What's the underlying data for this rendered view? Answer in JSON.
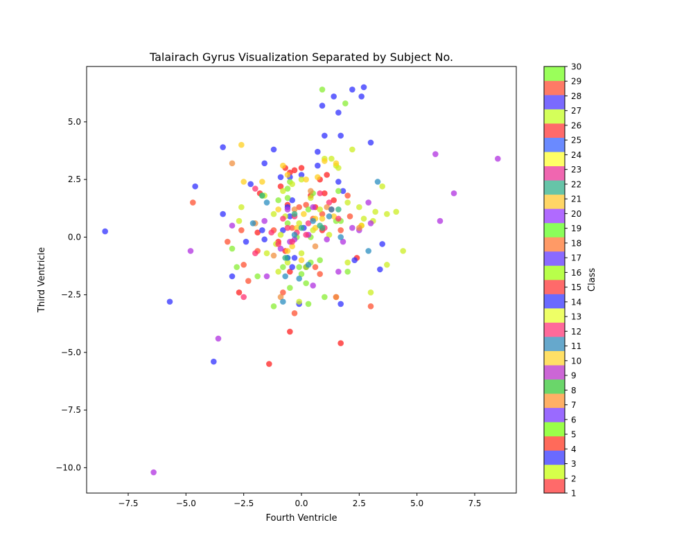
{
  "chart_data": {
    "type": "scatter",
    "title": "Talairach Gyrus Visualization Separated by Subject No.",
    "xlabel": "Fourth Ventricle",
    "ylabel": "Third Ventricle",
    "xlim": [
      -9.3,
      9.3
    ],
    "ylim": [
      -11.1,
      7.4
    ],
    "xticks": [
      -7.5,
      -5.0,
      -2.5,
      0.0,
      2.5,
      5.0,
      7.5
    ],
    "yticks": [
      -10.0,
      -7.5,
      -5.0,
      -2.5,
      0.0,
      2.5,
      5.0
    ],
    "grid": false,
    "colorbar": {
      "label": "Class",
      "ticks": [
        1,
        2,
        3,
        4,
        5,
        6,
        7,
        8,
        9,
        10,
        11,
        12,
        13,
        14,
        15,
        16,
        17,
        18,
        19,
        20,
        21,
        22,
        23,
        24,
        25,
        26,
        27,
        28,
        29,
        30
      ],
      "colors": [
        "#ff6a6a",
        "#d6ff4a",
        "#6a6aff",
        "#ff6a5a",
        "#9aff4a",
        "#9a6aff",
        "#ffb066",
        "#6ad66a",
        "#cc66d6",
        "#ffe066",
        "#66a8cc",
        "#ff6a9a",
        "#eeff66",
        "#6a6aff",
        "#ff6a6a",
        "#b8ff4a",
        "#8a6aff",
        "#ff9a66",
        "#8aff5a",
        "#b06aff",
        "#ffd666",
        "#66c4a8",
        "#f066b0",
        "#ffff66",
        "#6a8aff",
        "#ff6a6a",
        "#d4ff5a",
        "#7a6aff",
        "#ff7a66",
        "#9aff5a"
      ]
    },
    "series": [
      {
        "color": "#ff2020",
        "points": [
          [
            -0.7,
            3.0
          ],
          [
            -0.3,
            2.9
          ],
          [
            0.0,
            3.0
          ],
          [
            0.8,
            2.5
          ],
          [
            1.1,
            2.7
          ],
          [
            -0.5,
            2.8
          ],
          [
            -0.9,
            2.2
          ],
          [
            -1.8,
            1.9
          ],
          [
            0.4,
            1.8
          ],
          [
            1.0,
            1.9
          ],
          [
            1.4,
            1.6
          ],
          [
            -0.6,
            1.4
          ],
          [
            0.6,
            1.3
          ],
          [
            1.3,
            1.2
          ],
          [
            -1.9,
            0.2
          ],
          [
            -1.0,
            -0.2
          ],
          [
            -0.7,
            -0.6
          ],
          [
            -0.5,
            -1.5
          ],
          [
            -2.7,
            -2.4
          ],
          [
            -1.4,
            -5.5
          ],
          [
            -0.5,
            -4.1
          ],
          [
            1.7,
            -4.6
          ],
          [
            2.4,
            -0.9
          ],
          [
            0.9,
            0.3
          ]
        ]
      },
      {
        "color": "#ff5030",
        "points": [
          [
            -4.7,
            1.5
          ],
          [
            -2.5,
            -1.2
          ],
          [
            -2.3,
            -1.9
          ],
          [
            -1.2,
            0.3
          ],
          [
            -0.8,
            -2.4
          ],
          [
            -0.3,
            -3.3
          ],
          [
            0.2,
            -1.3
          ],
          [
            0.6,
            -1.3
          ],
          [
            0.8,
            -1.6
          ],
          [
            1.5,
            -2.6
          ],
          [
            3.0,
            -3.0
          ],
          [
            -3.2,
            -0.2
          ],
          [
            -2.6,
            0.3
          ],
          [
            2.1,
            0.9
          ],
          [
            1.7,
            0.3
          ],
          [
            0.5,
            0.8
          ],
          [
            -0.1,
            1.3
          ],
          [
            0.2,
            1.4
          ],
          [
            0.9,
            1.0
          ],
          [
            2.0,
            1.8
          ],
          [
            -0.4,
            0.4
          ],
          [
            -1.9,
            -0.6
          ]
        ]
      },
      {
        "color": "#3030ff",
        "points": [
          [
            -8.5,
            0.25
          ],
          [
            -5.7,
            -2.8
          ],
          [
            -4.6,
            2.2
          ],
          [
            -3.4,
            3.9
          ],
          [
            -3.4,
            1.0
          ],
          [
            -3.0,
            -1.7
          ],
          [
            -3.8,
            -5.4
          ],
          [
            -1.2,
            3.8
          ],
          [
            -1.6,
            3.2
          ],
          [
            -2.2,
            2.3
          ],
          [
            -1.7,
            0.3
          ],
          [
            -1.6,
            -0.1
          ],
          [
            -0.9,
            2.6
          ],
          [
            -0.5,
            2.6
          ],
          [
            0.0,
            2.7
          ],
          [
            0.7,
            3.1
          ],
          [
            0.7,
            3.7
          ],
          [
            1.0,
            4.4
          ],
          [
            1.7,
            4.4
          ],
          [
            3.0,
            4.1
          ],
          [
            0.9,
            5.7
          ],
          [
            1.4,
            6.1
          ],
          [
            1.6,
            5.4
          ],
          [
            2.2,
            6.4
          ],
          [
            2.6,
            6.1
          ],
          [
            2.7,
            6.5
          ],
          [
            -0.6,
            1.3
          ],
          [
            -0.5,
            0.9
          ],
          [
            -0.8,
            0.3
          ],
          [
            0.1,
            0.4
          ],
          [
            -0.4,
            -1.3
          ],
          [
            -0.3,
            -0.9
          ],
          [
            -0.6,
            -0.9
          ],
          [
            1.7,
            -2.9
          ],
          [
            -0.1,
            -2.9
          ],
          [
            2.3,
            -1.0
          ],
          [
            3.4,
            -1.4
          ],
          [
            3.5,
            -0.3
          ],
          [
            1.8,
            2.0
          ],
          [
            1.6,
            2.4
          ],
          [
            -0.4,
            1.6
          ],
          [
            -2.4,
            -0.2
          ]
        ]
      },
      {
        "color": "#88ee33",
        "points": [
          [
            0.9,
            6.4
          ],
          [
            1.9,
            5.8
          ],
          [
            -1.7,
            1.8
          ],
          [
            -0.6,
            2.1
          ],
          [
            -0.5,
            2.4
          ],
          [
            0.5,
            1.9
          ],
          [
            0.3,
            1.2
          ],
          [
            1.6,
            2.0
          ],
          [
            -1.0,
            1.6
          ],
          [
            -0.6,
            1.7
          ],
          [
            -0.8,
            -1.3
          ],
          [
            -1.2,
            -3.0
          ],
          [
            0.2,
            -2.0
          ],
          [
            0.4,
            -1.1
          ],
          [
            0.2,
            -1.3
          ],
          [
            -0.1,
            -1.3
          ],
          [
            0.0,
            -1.6
          ],
          [
            1.0,
            -2.6
          ],
          [
            -0.5,
            -2.2
          ],
          [
            2.0,
            -1.5
          ],
          [
            -2.8,
            -1.3
          ],
          [
            -1.9,
            -1.7
          ],
          [
            -3.0,
            -0.5
          ],
          [
            0.3,
            -2.9
          ],
          [
            -0.6,
            0.6
          ],
          [
            -0.2,
            0.0
          ],
          [
            0.4,
            0.0
          ],
          [
            1.7,
            0.7
          ],
          [
            1.5,
            0.7
          ],
          [
            0.8,
            -1.0
          ]
        ]
      },
      {
        "color": "#ccee22",
        "points": [
          [
            -2.6,
            1.3
          ],
          [
            -1.6,
            1.8
          ],
          [
            -0.8,
            2.0
          ],
          [
            -0.4,
            2.3
          ],
          [
            0.0,
            2.5
          ],
          [
            0.4,
            1.7
          ],
          [
            0.8,
            1.2
          ],
          [
            2.0,
            1.5
          ],
          [
            2.5,
            1.3
          ],
          [
            3.2,
            1.1
          ],
          [
            3.7,
            1.0
          ],
          [
            4.1,
            1.1
          ],
          [
            3.5,
            2.2
          ],
          [
            2.2,
            3.8
          ],
          [
            1.5,
            3.1
          ],
          [
            1.6,
            3.0
          ],
          [
            -1.2,
            1.0
          ],
          [
            -0.7,
            0.9
          ],
          [
            -0.1,
            0.6
          ],
          [
            0.5,
            0.3
          ],
          [
            1.2,
            0.1
          ],
          [
            2.6,
            0.5
          ],
          [
            3.1,
            0.7
          ],
          [
            4.4,
            -0.6
          ],
          [
            3.7,
            -1.2
          ],
          [
            2.0,
            -1.1
          ],
          [
            0.0,
            -0.7
          ],
          [
            -1.1,
            -0.3
          ],
          [
            -1.5,
            -0.7
          ],
          [
            -2.7,
            0.7
          ],
          [
            3.0,
            -2.4
          ],
          [
            -0.1,
            -2.8
          ],
          [
            -1.0,
            -1.5
          ],
          [
            -0.6,
            -1.1
          ],
          [
            -0.9,
            0.1
          ],
          [
            1.0,
            3.4
          ],
          [
            1.3,
            3.4
          ],
          [
            2.7,
            0.8
          ]
        ]
      },
      {
        "color": "#ffd020",
        "points": [
          [
            -2.6,
            4.0
          ],
          [
            -2.5,
            2.4
          ],
          [
            -1.7,
            2.4
          ],
          [
            -0.8,
            3.1
          ],
          [
            -0.6,
            2.7
          ],
          [
            0.2,
            2.5
          ],
          [
            0.7,
            2.6
          ],
          [
            1.0,
            3.3
          ],
          [
            1.5,
            3.2
          ],
          [
            -1.0,
            1.2
          ],
          [
            0.1,
            1.0
          ],
          [
            0.6,
            0.4
          ],
          [
            0.9,
            0.8
          ],
          [
            1.4,
            0.9
          ],
          [
            2.6,
            0.5
          ],
          [
            -0.2,
            0.4
          ],
          [
            -0.4,
            -0.4
          ],
          [
            -0.6,
            -0.6
          ],
          [
            0.6,
            0.8
          ],
          [
            0.0,
            -1.0
          ]
        ]
      },
      {
        "color": "#b030e0",
        "points": [
          [
            -6.4,
            -10.2
          ],
          [
            -3.6,
            -4.4
          ],
          [
            -4.8,
            -0.6
          ],
          [
            -3.0,
            0.5
          ],
          [
            -1.6,
            0.7
          ],
          [
            -0.6,
            1.2
          ],
          [
            0.5,
            1.3
          ],
          [
            1.1,
            -0.1
          ],
          [
            1.8,
            -0.2
          ],
          [
            2.2,
            0.4
          ],
          [
            2.5,
            0.3
          ],
          [
            2.9,
            1.5
          ],
          [
            3.0,
            0.6
          ],
          [
            5.8,
            3.6
          ],
          [
            6.0,
            0.7
          ],
          [
            6.6,
            1.9
          ],
          [
            8.5,
            3.4
          ],
          [
            0.5,
            -2.1
          ],
          [
            -1.5,
            -1.7
          ],
          [
            -0.9,
            -0.5
          ],
          [
            0.3,
            0.1
          ],
          [
            1.6,
            -1.5
          ],
          [
            -0.5,
            -0.2
          ],
          [
            -0.3,
            -0.1
          ]
        ]
      },
      {
        "color": "#ff3070",
        "points": [
          [
            -2.0,
            2.1
          ],
          [
            -1.3,
            0.2
          ],
          [
            -0.8,
            0.8
          ],
          [
            -0.3,
            0.9
          ],
          [
            0.3,
            0.6
          ],
          [
            1.0,
            0.4
          ],
          [
            1.6,
            0.8
          ],
          [
            -2.5,
            -2.6
          ],
          [
            -2.0,
            -0.7
          ],
          [
            -1.0,
            -0.3
          ],
          [
            -0.4,
            -0.2
          ],
          [
            0.2,
            0.1
          ],
          [
            -0.6,
            0.4
          ],
          [
            1.2,
            1.5
          ],
          [
            0.8,
            1.9
          ],
          [
            -0.2,
            0.2
          ]
        ]
      },
      {
        "color": "#f09040",
        "points": [
          [
            -3.0,
            3.2
          ],
          [
            -0.3,
            1.2
          ],
          [
            0.4,
            2.0
          ],
          [
            1.1,
            1.3
          ],
          [
            1.5,
            -2.6
          ],
          [
            2.5,
            0.4
          ],
          [
            -0.9,
            -2.6
          ],
          [
            -1.2,
            -0.8
          ],
          [
            -2.0,
            0.6
          ],
          [
            0.6,
            -0.4
          ]
        ]
      },
      {
        "color": "#2a8ec0",
        "points": [
          [
            3.3,
            2.4
          ],
          [
            2.9,
            -0.6
          ],
          [
            1.7,
            0.0
          ],
          [
            1.3,
            1.2
          ],
          [
            1.2,
            0.9
          ],
          [
            -0.7,
            -1.7
          ],
          [
            -0.1,
            -1.8
          ],
          [
            -0.8,
            -2.8
          ],
          [
            -1.5,
            1.5
          ],
          [
            -2.1,
            0.6
          ],
          [
            0.5,
            0.7
          ],
          [
            -0.3,
            0.1
          ],
          [
            -0.6,
            -0.9
          ],
          [
            0.3,
            -1.2
          ]
        ]
      },
      {
        "color": "#30b080",
        "points": [
          [
            -1.7,
            1.8
          ],
          [
            0.8,
            0.5
          ],
          [
            -0.3,
            1.0
          ],
          [
            0.0,
            0.4
          ],
          [
            0.9,
            0.4
          ],
          [
            -0.7,
            -0.9
          ],
          [
            1.6,
            1.2
          ]
        ]
      }
    ]
  }
}
